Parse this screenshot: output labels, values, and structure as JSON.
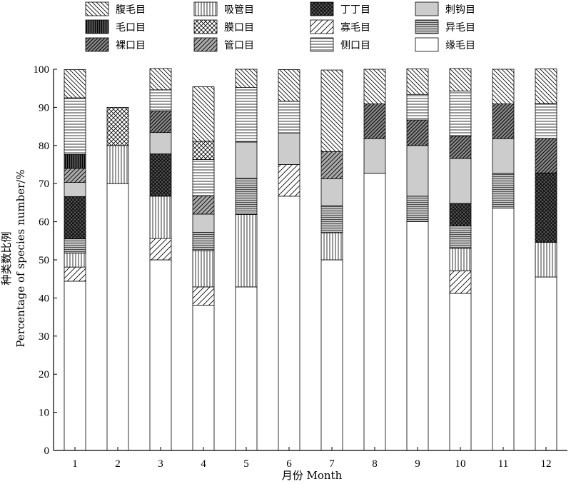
{
  "chart_data": {
    "type": "bar",
    "stacked": true,
    "xlabel": "月份 Month",
    "ylabel_cn": "种类数比例",
    "ylabel_en": "Percentage of species number/%",
    "ylim": [
      0,
      100
    ],
    "yticks": [
      0,
      10,
      20,
      30,
      40,
      50,
      60,
      70,
      80,
      90,
      100
    ],
    "categories": [
      "1",
      "2",
      "3",
      "4",
      "5",
      "6",
      "7",
      "8",
      "9",
      "10",
      "11",
      "12"
    ],
    "legend_position": "top",
    "series": [
      {
        "name": "缘毛目",
        "pattern": "blank",
        "values": [
          44.4,
          70.0,
          50.0,
          38.1,
          42.9,
          66.7,
          50.0,
          72.7,
          60.0,
          41.2,
          63.6,
          45.5
        ]
      },
      {
        "name": "寡毛目",
        "pattern": "diagonal-light",
        "values": [
          3.7,
          0,
          5.6,
          4.8,
          0,
          8.3,
          0,
          0,
          0,
          5.9,
          0,
          0
        ]
      },
      {
        "name": "吸管目",
        "pattern": "vertical-lines",
        "values": [
          3.7,
          10.0,
          11.1,
          9.5,
          19.0,
          0,
          7.1,
          0,
          0,
          5.9,
          0,
          9.1
        ]
      },
      {
        "name": "异毛目",
        "pattern": "horizontal-dense",
        "values": [
          3.7,
          0,
          0,
          4.8,
          9.5,
          0,
          7.1,
          0,
          6.7,
          5.9,
          9.1,
          0
        ]
      },
      {
        "name": "丁丁目",
        "pattern": "crosshatch-dark",
        "values": [
          11.1,
          0,
          11.1,
          0,
          0,
          0,
          0,
          0,
          0,
          5.9,
          0,
          18.2
        ]
      },
      {
        "name": "刺钩目",
        "pattern": "gray",
        "values": [
          3.7,
          0,
          5.6,
          4.8,
          9.5,
          8.3,
          7.1,
          9.1,
          13.3,
          11.8,
          9.1,
          0
        ]
      },
      {
        "name": "管口目",
        "pattern": "diagonal-gray",
        "values": [
          3.7,
          0,
          0,
          4.8,
          0,
          0,
          7.1,
          0,
          0,
          0,
          0,
          0
        ]
      },
      {
        "name": "裸口目",
        "pattern": "diagonal-dark",
        "values": [
          0,
          0,
          5.6,
          0,
          0,
          0,
          0,
          9.1,
          6.7,
          5.9,
          9.1,
          9.1
        ]
      },
      {
        "name": "毛口目",
        "pattern": "vertical-dark",
        "values": [
          3.7,
          0,
          0,
          0,
          0,
          0,
          0,
          0,
          0,
          0,
          0,
          0
        ]
      },
      {
        "name": "侧口目",
        "pattern": "horizontal-lines",
        "values": [
          14.8,
          0,
          5.6,
          9.5,
          14.3,
          8.3,
          0,
          0,
          6.7,
          11.8,
          0,
          9.1
        ]
      },
      {
        "name": "膜口目",
        "pattern": "crosshatch",
        "values": [
          0,
          10.0,
          0,
          4.8,
          0,
          0,
          0,
          0,
          0,
          0,
          0,
          0
        ]
      },
      {
        "name": "腹毛目",
        "pattern": "diagonal",
        "values": [
          7.4,
          0,
          5.6,
          14.3,
          4.8,
          8.3,
          21.4,
          9.1,
          6.7,
          5.9,
          9.1,
          9.1
        ]
      }
    ],
    "legend_order": [
      "腹毛目",
      "毛口目",
      "裸口目",
      "吸管目",
      "膜口目",
      "管口目",
      "丁丁目",
      "寡毛目",
      "侧口目",
      "刺钩目",
      "异毛目",
      "缘毛目"
    ]
  }
}
